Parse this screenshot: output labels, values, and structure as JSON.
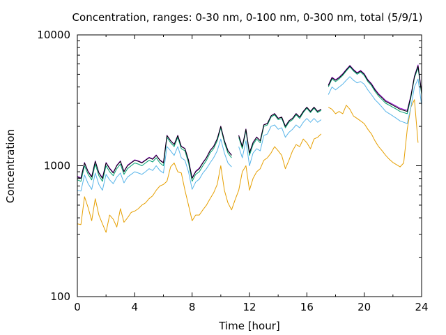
{
  "chart_data": {
    "type": "line",
    "title": "Concentration, ranges: 0-30 nm, 0-100 nm, 0-300 nm, total (5/9/1)",
    "xlabel": "Time [hour]",
    "ylabel": "Concentration",
    "x_scale": "linear",
    "y_scale": "log",
    "xlim": [
      0,
      24
    ],
    "ylim": [
      100,
      10000
    ],
    "xticks": [
      0,
      4,
      8,
      12,
      16,
      20,
      24
    ],
    "xtick_labels": [
      "0",
      "4",
      "8",
      "12",
      "16",
      "20",
      "24"
    ],
    "yticks": [
      100,
      1000,
      10000
    ],
    "ytick_labels": [
      "100",
      "1000",
      "10000"
    ],
    "grid": false,
    "legend": "none",
    "x": [
      0,
      0.25,
      0.5,
      0.75,
      1,
      1.25,
      1.5,
      1.75,
      2,
      2.25,
      2.5,
      2.75,
      3,
      3.25,
      3.5,
      3.75,
      4,
      4.25,
      4.5,
      4.75,
      5,
      5.25,
      5.5,
      5.75,
      6,
      6.25,
      6.5,
      6.75,
      7,
      7.25,
      7.5,
      7.75,
      8,
      8.25,
      8.5,
      8.75,
      9,
      9.25,
      9.5,
      9.75,
      10,
      10.25,
      10.5,
      10.75,
      11,
      11.25,
      11.5,
      11.75,
      12,
      12.25,
      12.5,
      12.75,
      13,
      13.25,
      13.5,
      13.75,
      14,
      14.25,
      14.5,
      14.75,
      15,
      15.25,
      15.5,
      15.75,
      16,
      16.25,
      16.5,
      16.75,
      17,
      17.25,
      17.5,
      17.75,
      18,
      18.25,
      18.5,
      18.75,
      19,
      19.25,
      19.5,
      19.75,
      20,
      20.25,
      20.5,
      20.75,
      21,
      21.25,
      21.5,
      21.75,
      22,
      22.25,
      22.5,
      22.75,
      23,
      23.25,
      23.5,
      23.75,
      24
    ],
    "series": [
      {
        "color": "#000000",
        "values": [
          820,
          800,
          1050,
          900,
          820,
          1080,
          880,
          800,
          1050,
          950,
          880,
          1000,
          1080,
          900,
          1000,
          1050,
          1100,
          1080,
          1050,
          1100,
          1150,
          1120,
          1200,
          1100,
          1050,
          1700,
          1550,
          1450,
          1700,
          1400,
          1350,
          1100,
          800,
          900,
          950,
          1050,
          1150,
          1300,
          1400,
          1600,
          2000,
          1550,
          1300,
          1200,
          null,
          1700,
          1400,
          1900,
          1250,
          1500,
          1650,
          1550,
          2050,
          2100,
          2400,
          2500,
          2300,
          2350,
          2000,
          2200,
          2300,
          2500,
          2350,
          2600,
          2800,
          2600,
          2800,
          2600,
          2700,
          null,
          4100,
          4700,
          4500,
          4700,
          5000,
          5400,
          5800,
          5400,
          5100,
          5300,
          5000,
          4500,
          4200,
          3800,
          3500,
          3300,
          3100,
          3000,
          2900,
          2800,
          2700,
          2650,
          2600,
          3400,
          4800,
          5800,
          3600
        ]
      },
      {
        "color": "#9400d3",
        "values": [
          830,
          810,
          1060,
          910,
          830,
          1090,
          890,
          810,
          1060,
          960,
          890,
          1010,
          1090,
          910,
          1010,
          1060,
          1110,
          1090,
          1060,
          1110,
          1160,
          1130,
          1210,
          1110,
          1060,
          1710,
          1560,
          1460,
          1710,
          1410,
          1360,
          1110,
          810,
          910,
          960,
          1060,
          1160,
          1310,
          1410,
          1610,
          2010,
          1560,
          1310,
          1210,
          null,
          1710,
          1410,
          1910,
          1260,
          1510,
          1660,
          1560,
          2060,
          2110,
          2410,
          2510,
          2310,
          2360,
          2010,
          2210,
          2310,
          2510,
          2360,
          2610,
          2810,
          2610,
          2810,
          2610,
          2710,
          null,
          4150,
          4750,
          4550,
          4750,
          5050,
          5450,
          5850,
          5450,
          5150,
          5350,
          5050,
          4550,
          4250,
          3850,
          3550,
          3350,
          3150,
          3050,
          2950,
          2850,
          2750,
          2700,
          2650,
          3450,
          4850,
          5900,
          3650
        ]
      },
      {
        "color": "#009e73",
        "values": [
          780,
          760,
          1000,
          860,
          780,
          1030,
          840,
          760,
          1000,
          900,
          840,
          950,
          1030,
          860,
          950,
          1000,
          1050,
          1030,
          1000,
          1050,
          1100,
          1070,
          1150,
          1050,
          1000,
          1650,
          1500,
          1400,
          1650,
          1350,
          1300,
          1050,
          760,
          860,
          900,
          1000,
          1100,
          1250,
          1350,
          1550,
          1950,
          1500,
          1250,
          1150,
          null,
          1650,
          1350,
          1850,
          1200,
          1450,
          1600,
          1500,
          2000,
          2050,
          2350,
          2450,
          2250,
          2300,
          1950,
          2150,
          2250,
          2450,
          2300,
          2550,
          2750,
          2550,
          2750,
          2550,
          2650,
          null,
          4000,
          4600,
          4400,
          4600,
          4900,
          5300,
          5700,
          5300,
          5000,
          5200,
          4900,
          4400,
          4100,
          3700,
          3400,
          3200,
          3000,
          2900,
          2800,
          2700,
          2600,
          2550,
          2500,
          3300,
          4700,
          5600,
          3500
        ]
      },
      {
        "color": "#56b4e9",
        "values": [
          650,
          640,
          850,
          730,
          660,
          880,
          720,
          650,
          860,
          780,
          730,
          820,
          880,
          740,
          820,
          860,
          900,
          880,
          860,
          900,
          950,
          920,
          1000,
          920,
          880,
          1400,
          1300,
          1200,
          1400,
          1150,
          1100,
          900,
          660,
          750,
          790,
          880,
          950,
          1050,
          1150,
          1300,
          1600,
          1250,
          1050,
          980,
          null,
          1400,
          1150,
          1550,
          1000,
          1250,
          1350,
          1300,
          1700,
          1750,
          2000,
          2050,
          1900,
          1950,
          1650,
          1800,
          1900,
          2050,
          1950,
          2150,
          2300,
          2150,
          2300,
          2150,
          2250,
          null,
          3500,
          4000,
          3800,
          4000,
          4200,
          4500,
          4800,
          4500,
          4300,
          4400,
          4200,
          3800,
          3500,
          3200,
          3000,
          2800,
          2600,
          2500,
          2400,
          2300,
          2200,
          2150,
          2100,
          2800,
          4000,
          4600,
          2900
        ]
      },
      {
        "color": "#e69f00",
        "values": [
          360,
          355,
          580,
          480,
          380,
          560,
          420,
          360,
          310,
          420,
          390,
          340,
          470,
          370,
          400,
          440,
          450,
          470,
          500,
          520,
          560,
          590,
          650,
          700,
          720,
          760,
          980,
          1050,
          900,
          880,
          650,
          500,
          380,
          420,
          420,
          460,
          500,
          560,
          620,
          720,
          1000,
          650,
          520,
          460,
          550,
          650,
          900,
          1000,
          650,
          800,
          900,
          950,
          1100,
          1150,
          1250,
          1400,
          1300,
          1200,
          950,
          1100,
          1300,
          1450,
          1400,
          1600,
          1500,
          1350,
          1600,
          1650,
          1750,
          null,
          2800,
          2700,
          2500,
          2600,
          2500,
          2900,
          2700,
          2400,
          2300,
          2200,
          2100,
          1900,
          1750,
          1550,
          1400,
          1300,
          1200,
          1120,
          1060,
          1020,
          980,
          1050,
          1900,
          2800,
          3200,
          1500,
          0
        ]
      }
    ]
  }
}
